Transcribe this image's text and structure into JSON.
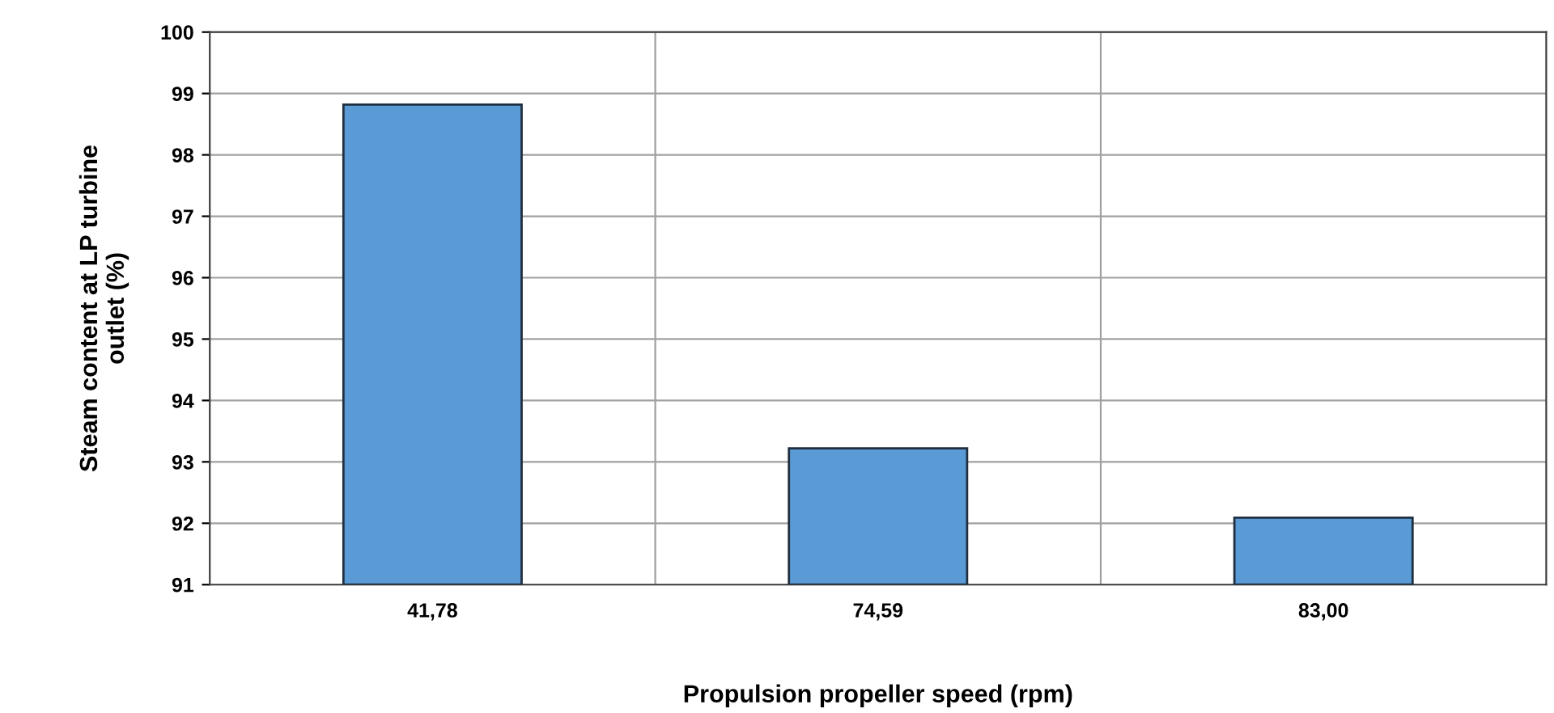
{
  "chart_data": {
    "type": "bar",
    "xlabel": "Propulsion propeller speed (rpm)",
    "ylabel": "Steam content at LP turbine\noutlet (%)",
    "categories": [
      "41,78",
      "74,59",
      "83,00"
    ],
    "values": [
      98.82,
      93.22,
      92.09
    ],
    "color": "#5b9bd5",
    "ylim": [
      91,
      100
    ],
    "yticks": [
      91,
      92,
      93,
      94,
      95,
      96,
      97,
      98,
      99,
      100
    ],
    "grid": true
  }
}
